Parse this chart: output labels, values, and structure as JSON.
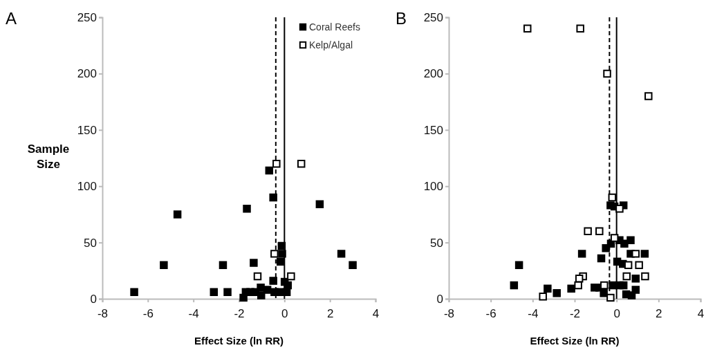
{
  "chart_data": [
    {
      "type": "scatter",
      "title": "A",
      "xlabel": "Effect Size (ln RR)",
      "ylabel": "Sample Size",
      "xlim": [
        -8,
        4
      ],
      "xticks": [
        -8,
        -6,
        -4,
        -2,
        0,
        2,
        4
      ],
      "ylim": [
        0,
        250
      ],
      "yticks": [
        0,
        50,
        100,
        150,
        200,
        250
      ],
      "marker": "square",
      "legend": "top right",
      "grid": false,
      "ref_lines": [
        {
          "axis": "x",
          "value": -0.38,
          "line_style": "dashed",
          "color": "#000000"
        },
        {
          "axis": "x",
          "value": 0,
          "line_style": "solid",
          "color": "#000000"
        }
      ],
      "series": [
        {
          "name": "Coral Reefs",
          "color": "#000000",
          "x": [
            -6.6,
            -4.7,
            -5.3,
            -2.7,
            -3.1,
            -2.5,
            -1.65,
            -1.35,
            -0.67,
            -0.49,
            1.55,
            2.5,
            3,
            -0.12,
            -0.1,
            -0.17,
            -0.49,
            -1.8,
            -1.7,
            -1.5,
            -1.28,
            -1.04,
            -1.02,
            -0.75,
            -0.44,
            -0.22,
            0.01,
            0.15,
            0.1
          ],
          "values": [
            6,
            75,
            30,
            30,
            6,
            6,
            80,
            32,
            114,
            90,
            84,
            40,
            30,
            47,
            40,
            33,
            16,
            1,
            6,
            6,
            6,
            10,
            3,
            8,
            6,
            6,
            15,
            12,
            6
          ]
        },
        {
          "name": "Kelp/Algal",
          "color": "#ffffff",
          "x": [
            -0.35,
            0.74,
            -0.44,
            -1.18,
            0.29
          ],
          "values": [
            120,
            120,
            40,
            20,
            20
          ]
        }
      ]
    },
    {
      "type": "scatter",
      "title": "B",
      "xlabel": "Effect Size (ln RR)",
      "xlim": [
        -8,
        4
      ],
      "xticks": [
        -8,
        -6,
        -4,
        -2,
        0,
        2,
        4
      ],
      "ylim": [
        0,
        250
      ],
      "yticks": [
        0,
        50,
        100,
        150,
        200,
        250
      ],
      "marker": "square",
      "legend": false,
      "grid": false,
      "ref_lines": [
        {
          "axis": "x",
          "value": -0.34,
          "line_style": "dashed",
          "color": "#000000"
        },
        {
          "axis": "x",
          "value": 0,
          "line_style": "solid",
          "color": "#000000"
        }
      ],
      "series": [
        {
          "color": "#000000",
          "x": [
            -4.65,
            -4.89,
            -3.29,
            -2.85,
            -2.16,
            -1.65,
            -0.73,
            -0.51,
            -0.27,
            -0.29,
            -0.1,
            0.33,
            0.14,
            0.37,
            0.67,
            0.67,
            1.34,
            0.03,
            0.3,
            0.91,
            -1.05,
            -0.82,
            -0.61,
            -0.18,
            0.14,
            0.33,
            0.46,
            0.72,
            0.91
          ],
          "values": [
            30,
            12,
            9,
            5,
            9,
            40,
            36,
            45,
            49,
            83,
            82,
            83,
            52,
            49,
            52,
            40,
            40,
            33,
            31,
            18,
            10,
            10,
            5,
            12,
            12,
            12,
            4,
            3,
            8
          ]
        },
        {
          "color": "#ffffff",
          "x": [
            -4.25,
            -1.73,
            -0.45,
            1.52,
            -0.21,
            0.14,
            -1.37,
            -0.82,
            -0.1,
            0.91,
            0.56,
            1.07,
            0.48,
            1.36,
            -1.6,
            -1.78,
            -1.83,
            -3.51,
            -0.59,
            -0.29
          ],
          "values": [
            240,
            240,
            200,
            180,
            90,
            80,
            60,
            60,
            54,
            40,
            30,
            30,
            20,
            20,
            20,
            18,
            12,
            2,
            12,
            1
          ]
        }
      ]
    }
  ]
}
